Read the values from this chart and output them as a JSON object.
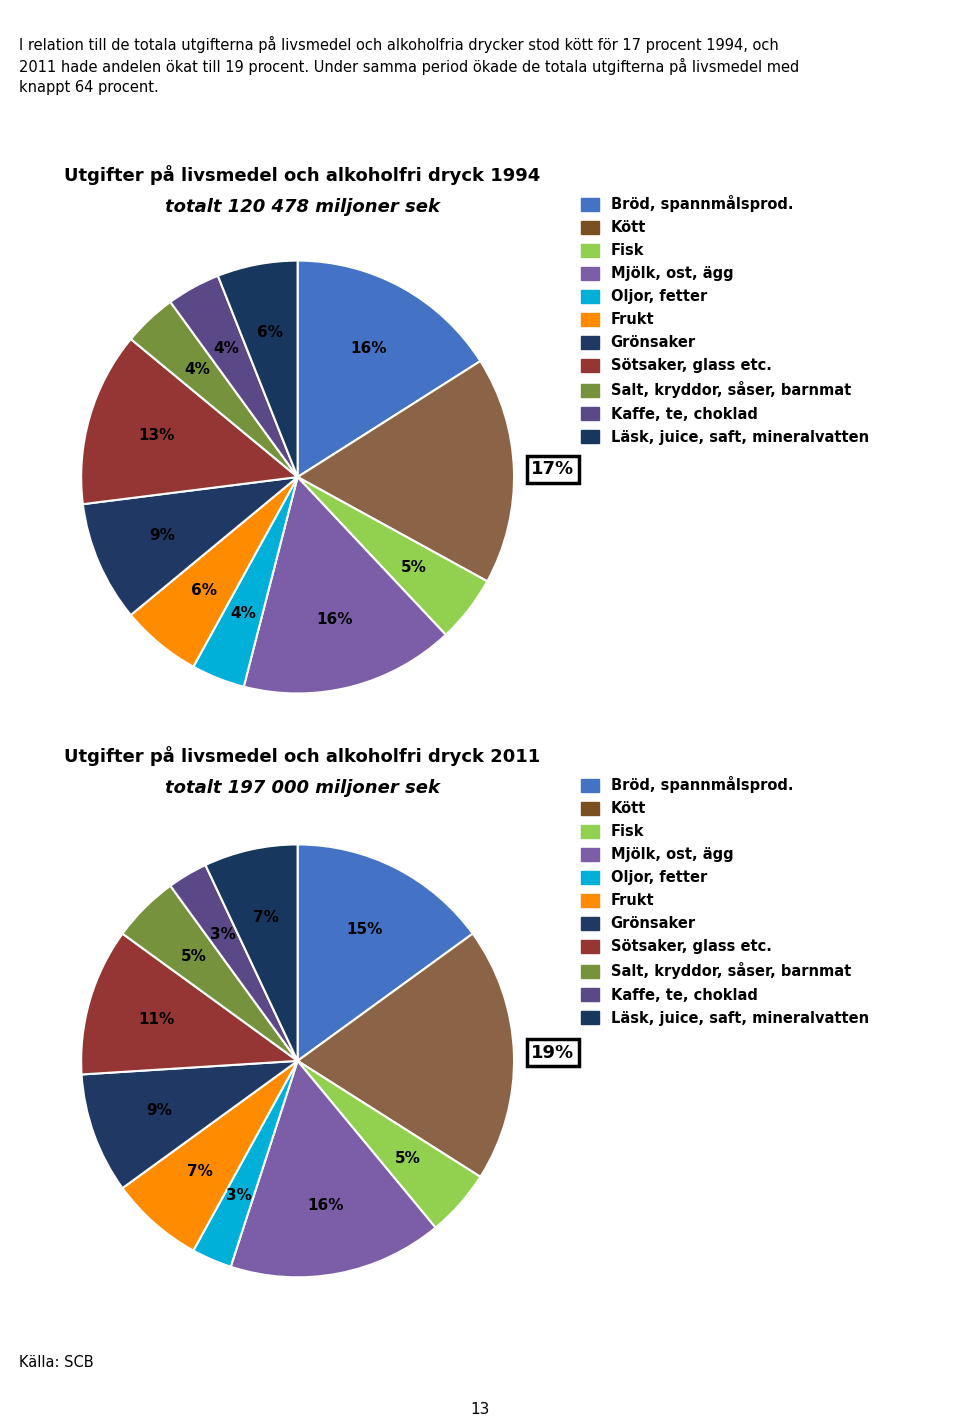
{
  "title1": "Utgifter på livsmedel och alkoholfri dryck 1994",
  "subtitle1": "totalt 120 478 miljoner sek",
  "title2": "Utgifter på livsmedel och alkoholfri dryck 2011",
  "subtitle2": "totalt 197 000 miljoner sek",
  "header_text": "I relation till de totala utgifterna på livsmedel och alkoholfria drycker stod kött för 17 procent 1994, och\n2011 hade andelen ökat till 19 procent. Under samma period ökade de totala utgifterna på livsmedel med\nknappt 64 procent.",
  "footer": "Källa: SCB",
  "page_number": "13",
  "labels": [
    "Bröd, spannmålsprod.",
    "Kött",
    "Fisk",
    "Mjölk, ost, ägg",
    "Oljor, fetter",
    "Frukt",
    "Grönsaker",
    "Sötsaker, glass etc.",
    "Salt, kryddor, såser, barnmat",
    "Kaffe, te, choklad",
    "Läsk, juice, saft, mineralvatten"
  ],
  "values_1994": [
    16,
    17,
    5,
    16,
    4,
    6,
    9,
    13,
    4,
    4,
    6
  ],
  "values_2011": [
    15,
    19,
    5,
    16,
    3,
    7,
    9,
    11,
    5,
    3,
    7
  ],
  "colors": [
    "#4472C4",
    "#8B6347",
    "#92D050",
    "#7B5EA7",
    "#00B0D8",
    "#FF8C00",
    "#1F3864",
    "#963634",
    "#76923C",
    "#5B4886",
    "#17375E"
  ],
  "legend_colors": [
    "#4472C4",
    "#7B5020",
    "#92D050",
    "#7B5EA7",
    "#00B0D8",
    "#FF8C00",
    "#1F3864",
    "#963634",
    "#76923C",
    "#5B4886",
    "#17375E"
  ],
  "startangle": 90,
  "label_fontsize": 11,
  "title_fontsize": 13,
  "legend_fontsize": 10.5
}
